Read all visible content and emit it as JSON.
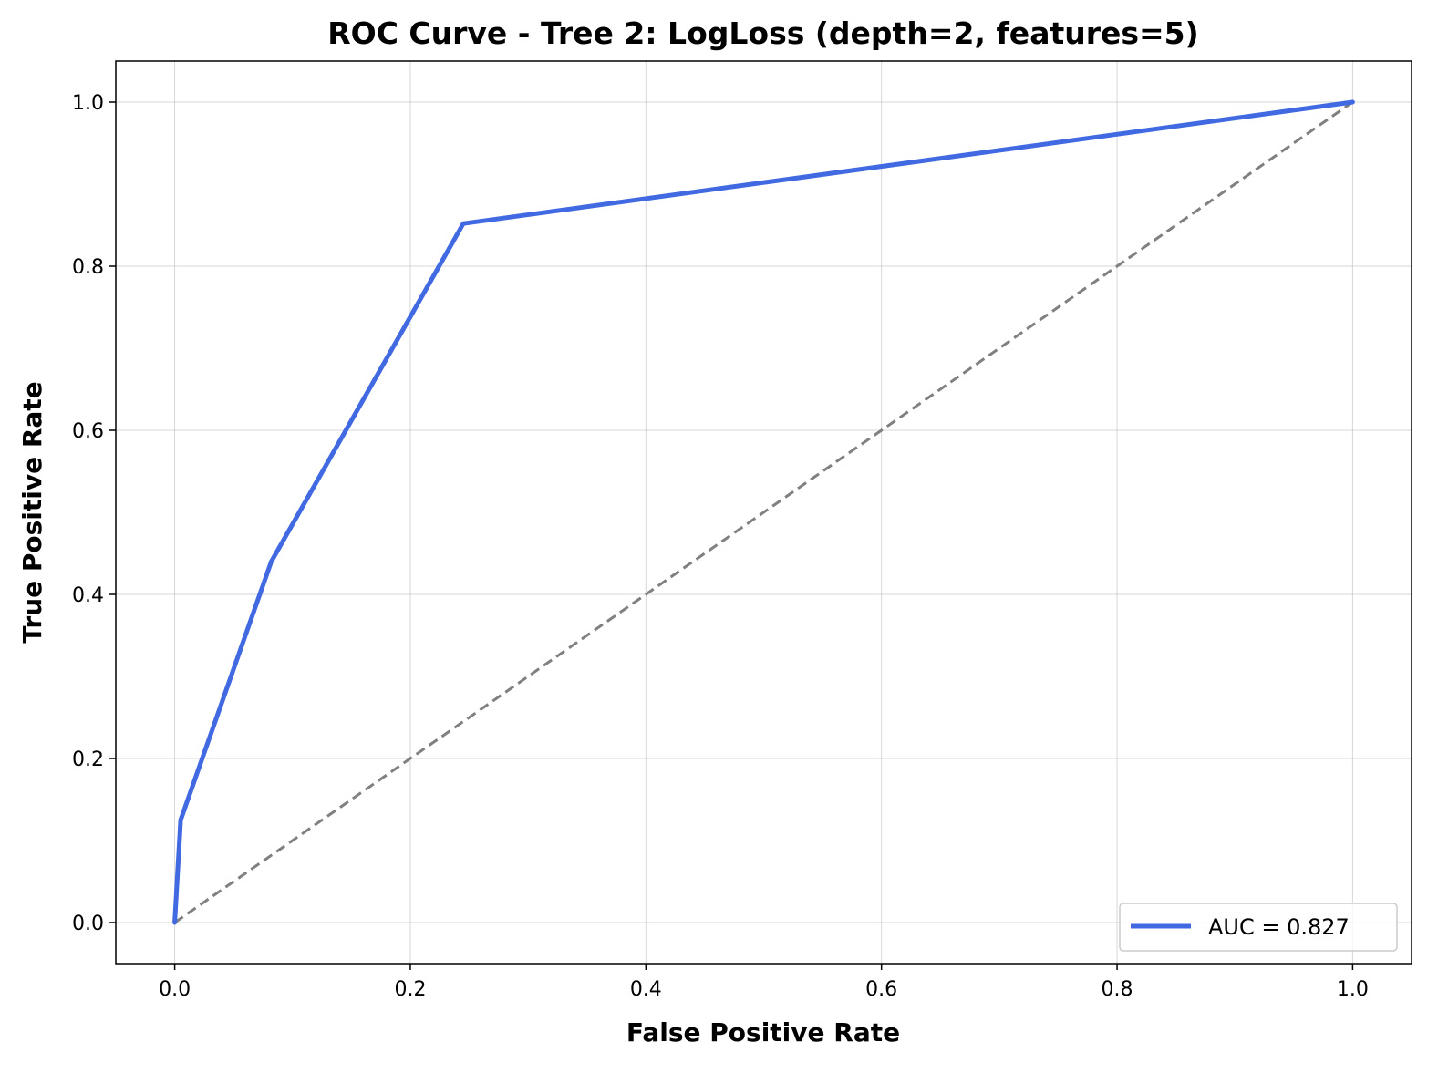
{
  "chart_data": {
    "type": "line",
    "title": "ROC Curve - Tree 2: LogLoss (depth=2, features=5)",
    "xlabel": "False Positive Rate",
    "ylabel": "True Positive Rate",
    "xlim": [
      -0.05,
      1.05
    ],
    "ylim": [
      -0.05,
      1.05
    ],
    "xticks": [
      0.0,
      0.2,
      0.4,
      0.6,
      0.8,
      1.0
    ],
    "yticks": [
      0.0,
      0.2,
      0.4,
      0.6,
      0.8,
      1.0
    ],
    "xtick_labels": [
      "0.0",
      "0.2",
      "0.4",
      "0.6",
      "0.8",
      "1.0"
    ],
    "ytick_labels": [
      "0.0",
      "0.2",
      "0.4",
      "0.6",
      "0.8",
      "1.0"
    ],
    "grid": true,
    "legend_position": "lower-right",
    "series": [
      {
        "name": "AUC = 0.827",
        "color": "#4169e1",
        "style": "solid",
        "x": [
          0.0,
          0.005,
          0.082,
          0.245,
          1.0
        ],
        "y": [
          0.0,
          0.125,
          0.44,
          0.852,
          1.0
        ]
      },
      {
        "color": "#808080",
        "style": "dashed",
        "x": [
          0.0,
          1.0
        ],
        "y": [
          0.0,
          1.0
        ]
      }
    ]
  }
}
